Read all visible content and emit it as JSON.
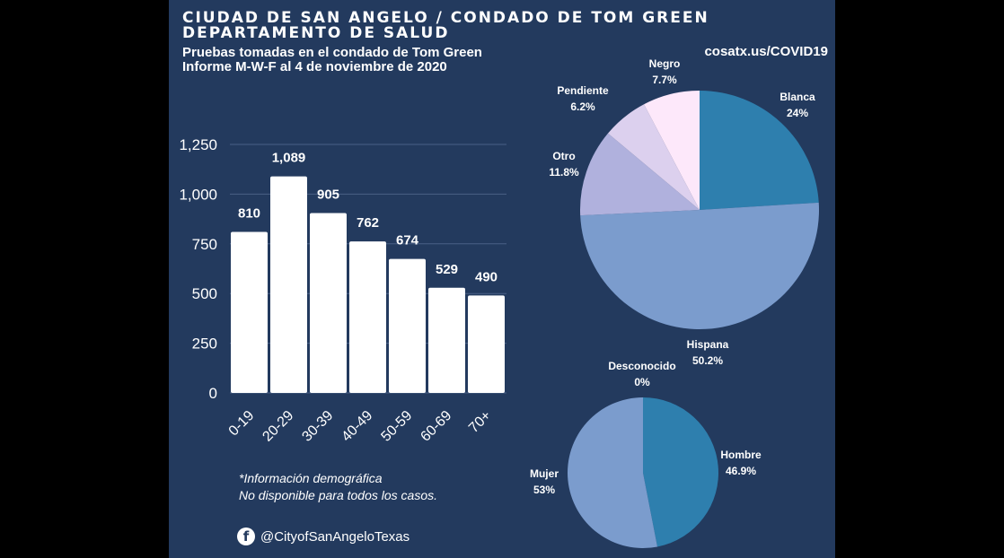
{
  "header": {
    "title_line1": "CIUDAD DE SAN ANGELO / CONDADO DE TOM GREEN",
    "title_line2": "DEPARTAMENTO DE SALUD",
    "subtitle_line1": "Pruebas tomadas en el condado de Tom Green",
    "subtitle_line2": "Informe M-W-F al 4 de noviembre de 2020",
    "url": "cosatx.us/COVID19"
  },
  "footer": {
    "note_line1": "*Información demográfica",
    "note_line2": "No disponible para todos los casos.",
    "social_handle": "@CityofSanAngeloTexas",
    "social_icon": "facebook-icon"
  },
  "colors": {
    "background": "#233a5e",
    "bar": "#ffffff",
    "blanca": "#2e7fae",
    "hispana": "#7b9ccd",
    "otro": "#b0b1dd",
    "pendiente": "#dcd0ee",
    "negro": "#fde8fa",
    "hombre": "#2e7fae",
    "mujer": "#7b9ccd"
  },
  "chart_data": [
    {
      "type": "bar",
      "categories": [
        "0-19",
        "20-29",
        "30-39",
        "40-49",
        "50-59",
        "60-69",
        "70+"
      ],
      "values": [
        810,
        1089,
        905,
        762,
        674,
        529,
        490
      ],
      "value_labels": [
        "810",
        "1,089",
        "905",
        "762",
        "674",
        "529",
        "490"
      ],
      "y_ticks": [
        "0",
        "250",
        "500",
        "750",
        "1,000",
        "1,250"
      ],
      "y_tick_values": [
        0,
        250,
        500,
        750,
        1000,
        1250
      ],
      "ylim": [
        0,
        1250
      ],
      "grid": true
    },
    {
      "type": "pie",
      "slices": [
        {
          "label": "Blanca",
          "pct_label": "24%",
          "value": 24.0,
          "color_key": "blanca"
        },
        {
          "label": "Hispana",
          "pct_label": "50.2%",
          "value": 50.2,
          "color_key": "hispana"
        },
        {
          "label": "Otro",
          "pct_label": "11.8%",
          "value": 11.8,
          "color_key": "otro"
        },
        {
          "label": "Pendiente",
          "pct_label": "6.2%",
          "value": 6.2,
          "color_key": "pendiente"
        },
        {
          "label": "Negro",
          "pct_label": "7.7%",
          "value": 7.7,
          "color_key": "negro"
        }
      ]
    },
    {
      "type": "pie",
      "slices": [
        {
          "label": "Hombre",
          "pct_label": "46.9%",
          "value": 46.9,
          "color_key": "hombre"
        },
        {
          "label": "Mujer",
          "pct_label": "53%",
          "value": 53.0,
          "color_key": "mujer"
        },
        {
          "label": "Desconocido",
          "pct_label": "0%",
          "value": 0,
          "color_key": "hombre"
        }
      ]
    }
  ]
}
